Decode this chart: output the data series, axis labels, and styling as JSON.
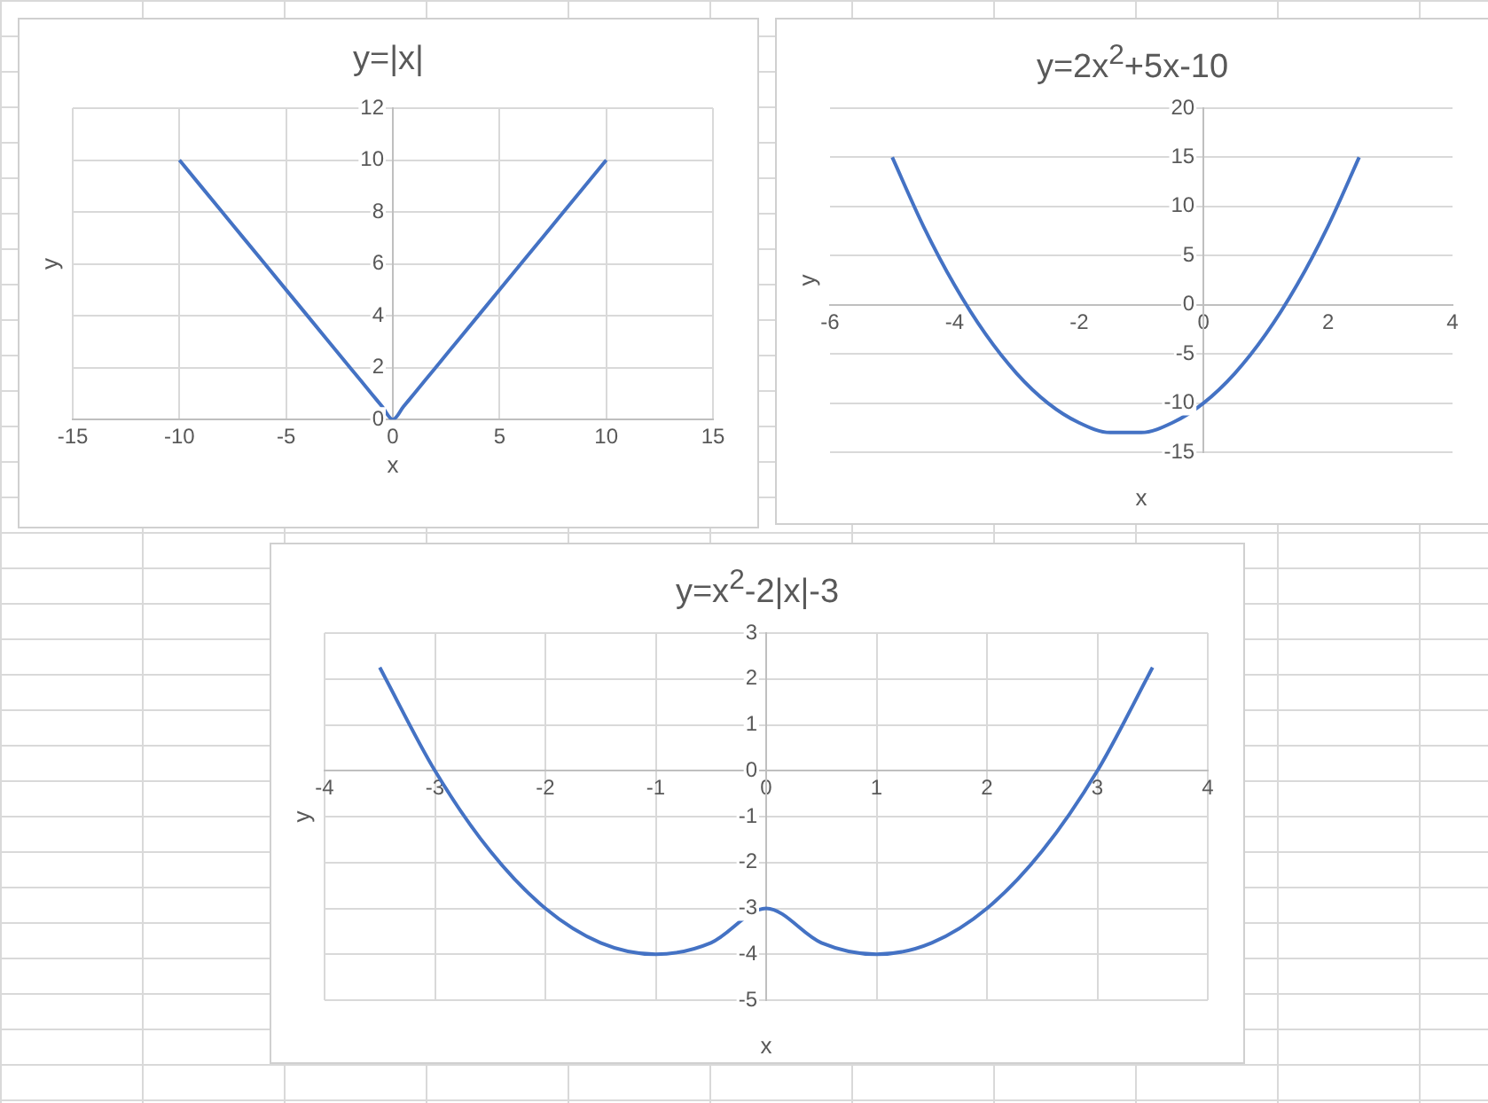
{
  "chart_data": [
    {
      "type": "line",
      "title": "y=|x|",
      "xlabel": "x",
      "ylabel": "y",
      "xlim": [
        -15,
        15
      ],
      "xticks": [
        -15,
        -10,
        -5,
        0,
        5,
        10,
        15
      ],
      "ylim": [
        0,
        12
      ],
      "yticks": [
        0,
        2,
        4,
        6,
        8,
        10,
        12
      ],
      "grid": true,
      "marker": "none",
      "legend": false,
      "series": [
        {
          "color": "#4472c4",
          "x": [
            -10,
            -8,
            -6,
            -4,
            -2,
            -1,
            -0.5,
            0,
            0.5,
            1,
            2,
            4,
            6,
            8,
            10
          ],
          "values": [
            10,
            8,
            6,
            4,
            2,
            1,
            0.5,
            0,
            0.5,
            1,
            2,
            4,
            6,
            8,
            10
          ]
        }
      ]
    },
    {
      "type": "line",
      "title": "y=2x$^{2}$+5x-10",
      "xlabel": "x",
      "ylabel": "y",
      "xlim": [
        -6,
        4
      ],
      "xticks": [
        -6,
        -4,
        -2,
        0,
        2,
        4
      ],
      "ylim": [
        -15,
        20
      ],
      "yticks": [
        -15,
        -10,
        -5,
        0,
        5,
        10,
        15,
        20
      ],
      "grid": "y",
      "marker": "none",
      "legend": false,
      "series": [
        {
          "color": "#4472c4",
          "x": [
            -5,
            -4.5,
            -4,
            -3.5,
            -3,
            -2.5,
            -2,
            -1.5,
            -1,
            -0.5,
            0,
            0.5,
            1,
            1.5,
            2,
            2.5
          ],
          "values": [
            15,
            8,
            2,
            -3,
            -7,
            -10,
            -12,
            -13,
            -13,
            -12,
            -10,
            -7,
            -3,
            2,
            8,
            15
          ]
        }
      ]
    },
    {
      "type": "line",
      "title": "y=x$^{2}$-2|x|-3",
      "xlabel": "x",
      "ylabel": "y",
      "xlim": [
        -4,
        4
      ],
      "xticks": [
        -4,
        -3,
        -2,
        -1,
        0,
        1,
        2,
        3,
        4
      ],
      "ylim": [
        -5,
        3
      ],
      "yticks": [
        -5,
        -4,
        -3,
        -2,
        -1,
        0,
        1,
        2,
        3
      ],
      "grid": true,
      "marker": "none",
      "legend": false,
      "series": [
        {
          "color": "#4472c4",
          "x": [
            -3.5,
            -3,
            -2.5,
            -2,
            -1.5,
            -1,
            -0.5,
            0,
            0.5,
            1,
            1.5,
            2,
            2.5,
            3,
            3.5
          ],
          "values": [
            2.25,
            0,
            -1.75,
            -3,
            -3.75,
            -4,
            -3.75,
            -3,
            -3.75,
            -4,
            -3.75,
            -3,
            -1.75,
            0,
            2.25
          ]
        }
      ]
    }
  ]
}
